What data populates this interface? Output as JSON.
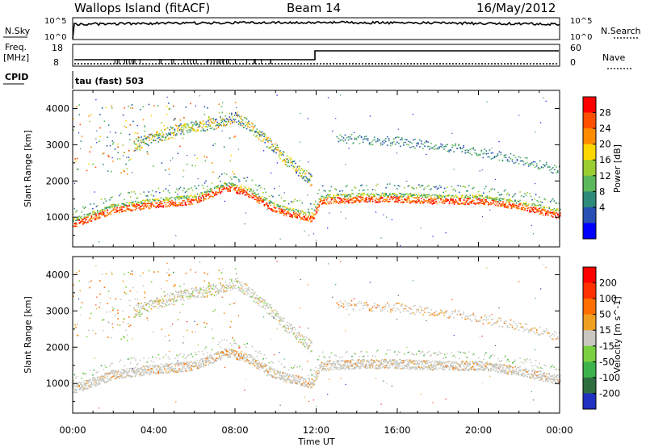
{
  "header": {
    "station": "Wallops Island (fitACF)",
    "beam": "Beam 14",
    "date": "16/May/2012"
  },
  "summary_panel": {
    "nsky_label": "N.Sky",
    "nsky_ticks": [
      "10^5",
      "10^0"
    ],
    "nsearch_label": "N.Search",
    "nsearch_ticks": [
      "10^5",
      "10^0"
    ],
    "freq_label_line1": "Freq.",
    "freq_label_line2": "[MHz]",
    "freq_ticks": [
      "18",
      "8"
    ],
    "nave_label": "Nave",
    "nave_ticks": [
      "60",
      "0"
    ],
    "cpid_label": "CPID",
    "cpid_value": "tau (fast) 503"
  },
  "colors": {
    "power_scale": [
      "#0000ff",
      "#2850b4",
      "#2e8b7a",
      "#5cb85c",
      "#9acd32",
      "#ffd700",
      "#ff8c00",
      "#ff5000",
      "#ff0000"
    ],
    "velocity_scale": [
      "#2030c0",
      "#2e6e3e",
      "#3cb44b",
      "#7ad040",
      "#c8c8c0",
      "#f0a020",
      "#ff7000",
      "#ff3000",
      "#ff0000"
    ]
  },
  "chart_data": [
    {
      "type": "heatmap",
      "name": "power",
      "ylabel": "Slant Range [km]",
      "xlabel": "Time UT",
      "x_ticks": [
        "00:00",
        "04:00",
        "08:00",
        "12:00",
        "16:00",
        "20:00",
        "00:00"
      ],
      "y_ticks": [
        1000,
        2000,
        3000,
        4000
      ],
      "ylim": [
        180,
        4500
      ],
      "xlim_hours": [
        0,
        24
      ],
      "colorbar_label": "Power [dB]",
      "colorbar_ticks": [
        "4",
        "8",
        "12",
        "16",
        "20",
        "24",
        "28"
      ],
      "features": [
        {
          "kind": "main-band",
          "times_h": [
            0,
            2,
            4,
            6,
            7.5,
            8.5,
            10,
            11,
            11.8,
            12.2,
            14,
            16,
            18,
            20,
            22,
            24
          ],
          "range_km": [
            800,
            1200,
            1350,
            1450,
            1800,
            1700,
            1200,
            1050,
            950,
            1450,
            1500,
            1500,
            1450,
            1450,
            1300,
            1050
          ]
        },
        {
          "kind": "upper-arc",
          "times_h": [
            3,
            5,
            7,
            8,
            9,
            10.5,
            11.8
          ],
          "range_km": [
            3000,
            3400,
            3600,
            3800,
            3400,
            2600,
            2000
          ]
        },
        {
          "kind": "late-band",
          "times_h": [
            13,
            16,
            19,
            22,
            24
          ],
          "range_km": [
            3200,
            3100,
            2900,
            2600,
            2300
          ]
        }
      ]
    },
    {
      "type": "heatmap",
      "name": "velocity",
      "ylabel": "Slant Range [km]",
      "xlabel": "Time UT",
      "x_ticks": [
        "00:00",
        "04:00",
        "08:00",
        "12:00",
        "16:00",
        "20:00",
        "00:00"
      ],
      "y_ticks": [
        1000,
        2000,
        3000,
        4000
      ],
      "ylim": [
        180,
        4500
      ],
      "xlim_hours": [
        0,
        24
      ],
      "colorbar_label": "Velocity [m s^-1]",
      "colorbar_ticks": [
        "200",
        "100",
        "50",
        "15",
        "-15",
        "-50",
        "-100",
        "-200"
      ]
    }
  ]
}
